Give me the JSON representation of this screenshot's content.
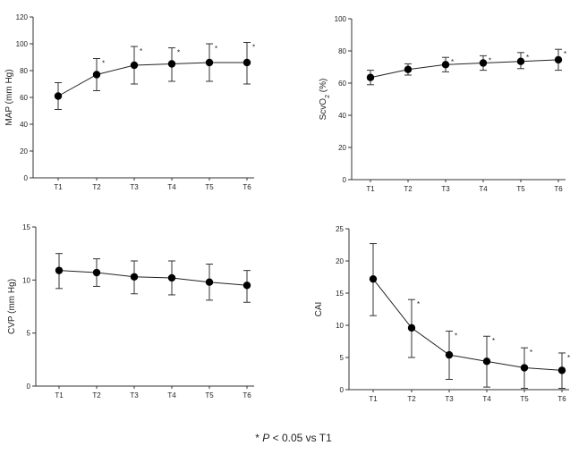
{
  "chart_data": [
    {
      "type": "line",
      "ylabel_main": "MAP",
      "ylabel_sub": "",
      "ylabel_tail": " (mm Hg)",
      "categories": [
        "T1",
        "T2",
        "T3",
        "T4",
        "T5",
        "T6"
      ],
      "ylim": [
        0,
        120
      ],
      "yticks": [
        0,
        20,
        40,
        60,
        80,
        100,
        120
      ],
      "values": [
        61,
        77,
        84,
        85,
        86,
        86
      ],
      "err_upper": [
        71,
        89,
        98,
        97,
        100,
        101
      ],
      "err_lower": [
        51,
        65,
        70,
        72,
        72,
        70
      ],
      "significant": [
        false,
        true,
        true,
        true,
        true,
        true
      ]
    },
    {
      "type": "line",
      "ylabel_main": "ScvO",
      "ylabel_sub": "2",
      "ylabel_tail": " (%)",
      "categories": [
        "T1",
        "T2",
        "T3",
        "T4",
        "T5",
        "T6"
      ],
      "ylim": [
        0,
        100
      ],
      "yticks": [
        0,
        20,
        40,
        60,
        80,
        100
      ],
      "values": [
        63.5,
        68.5,
        71.5,
        72.5,
        73.5,
        74.5
      ],
      "err_upper": [
        68,
        72,
        76,
        77,
        79,
        81
      ],
      "err_lower": [
        59,
        65,
        67,
        68,
        69,
        68
      ],
      "significant": [
        false,
        false,
        true,
        true,
        true,
        true
      ]
    },
    {
      "type": "line",
      "ylabel_main": "CVP",
      "ylabel_sub": "",
      "ylabel_tail": " (mm Hg)",
      "categories": [
        "T1",
        "T2",
        "T3",
        "T4",
        "T5",
        "T6"
      ],
      "ylim": [
        0,
        15
      ],
      "yticks": [
        0,
        5,
        10,
        15
      ],
      "values": [
        10.9,
        10.7,
        10.3,
        10.2,
        9.8,
        9.5
      ],
      "err_upper": [
        12.5,
        12.0,
        11.8,
        11.8,
        11.5,
        10.9
      ],
      "err_lower": [
        9.2,
        9.4,
        8.7,
        8.6,
        8.1,
        7.9
      ],
      "significant": [
        false,
        false,
        false,
        false,
        false,
        false
      ]
    },
    {
      "type": "line",
      "ylabel_main": "CAI",
      "ylabel_sub": "",
      "ylabel_tail": "",
      "categories": [
        "T1",
        "T2",
        "T3",
        "T4",
        "T5",
        "T6"
      ],
      "ylim": [
        0,
        25
      ],
      "yticks": [
        0,
        5,
        10,
        15,
        20,
        25
      ],
      "values": [
        17.2,
        9.6,
        5.4,
        4.4,
        3.4,
        3.0
      ],
      "err_upper": [
        22.7,
        14.0,
        9.1,
        8.3,
        6.5,
        5.7
      ],
      "err_lower": [
        11.5,
        5.0,
        1.6,
        0.4,
        0.2,
        0.2
      ],
      "significant": [
        false,
        true,
        true,
        true,
        true,
        true
      ]
    }
  ],
  "footnote": {
    "star": "*",
    "p": "P",
    "rest": "< 0.05 vs T1"
  }
}
